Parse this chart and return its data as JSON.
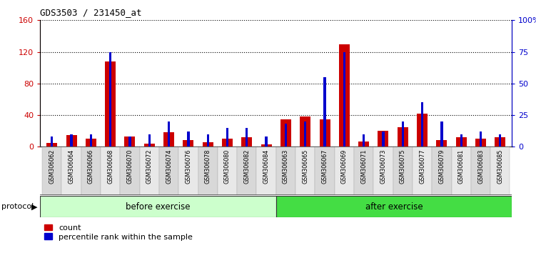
{
  "title": "GDS3503 / 231450_at",
  "categories": [
    "GSM306062",
    "GSM306064",
    "GSM306066",
    "GSM306068",
    "GSM306070",
    "GSM306072",
    "GSM306074",
    "GSM306076",
    "GSM306078",
    "GSM306080",
    "GSM306082",
    "GSM306084",
    "GSM306063",
    "GSM306065",
    "GSM306067",
    "GSM306069",
    "GSM306071",
    "GSM306073",
    "GSM306075",
    "GSM306077",
    "GSM306079",
    "GSM306081",
    "GSM306083",
    "GSM306085"
  ],
  "count_values": [
    5,
    15,
    10,
    108,
    13,
    4,
    18,
    8,
    6,
    10,
    12,
    3,
    35,
    38,
    35,
    130,
    7,
    20,
    25,
    42,
    8,
    12,
    10,
    12
  ],
  "percentile_values": [
    8,
    10,
    10,
    75,
    8,
    10,
    20,
    12,
    10,
    15,
    15,
    8,
    18,
    20,
    55,
    75,
    10,
    12,
    20,
    35,
    20,
    10,
    12,
    10
  ],
  "before_n": 12,
  "after_n": 12,
  "bar_color_count": "#cc0000",
  "bar_color_percentile": "#0000cc",
  "ylim_left": [
    0,
    160
  ],
  "ylim_right": [
    0,
    100
  ],
  "yticks_left": [
    0,
    40,
    80,
    120,
    160
  ],
  "ytick_labels_left": [
    "0",
    "40",
    "80",
    "120",
    "160"
  ],
  "ytick_labels_right": [
    "0",
    "25",
    "50",
    "75",
    "100%"
  ],
  "before_label": "before exercise",
  "after_label": "after exercise",
  "before_color": "#ccffcc",
  "after_color": "#44dd44",
  "legend_count": "count",
  "legend_percentile": "percentile rank within the sample",
  "protocol_label": "protocol",
  "title_fontsize": 9,
  "col_bg_even": "#d8d8d8",
  "col_bg_odd": "#e8e8e8"
}
